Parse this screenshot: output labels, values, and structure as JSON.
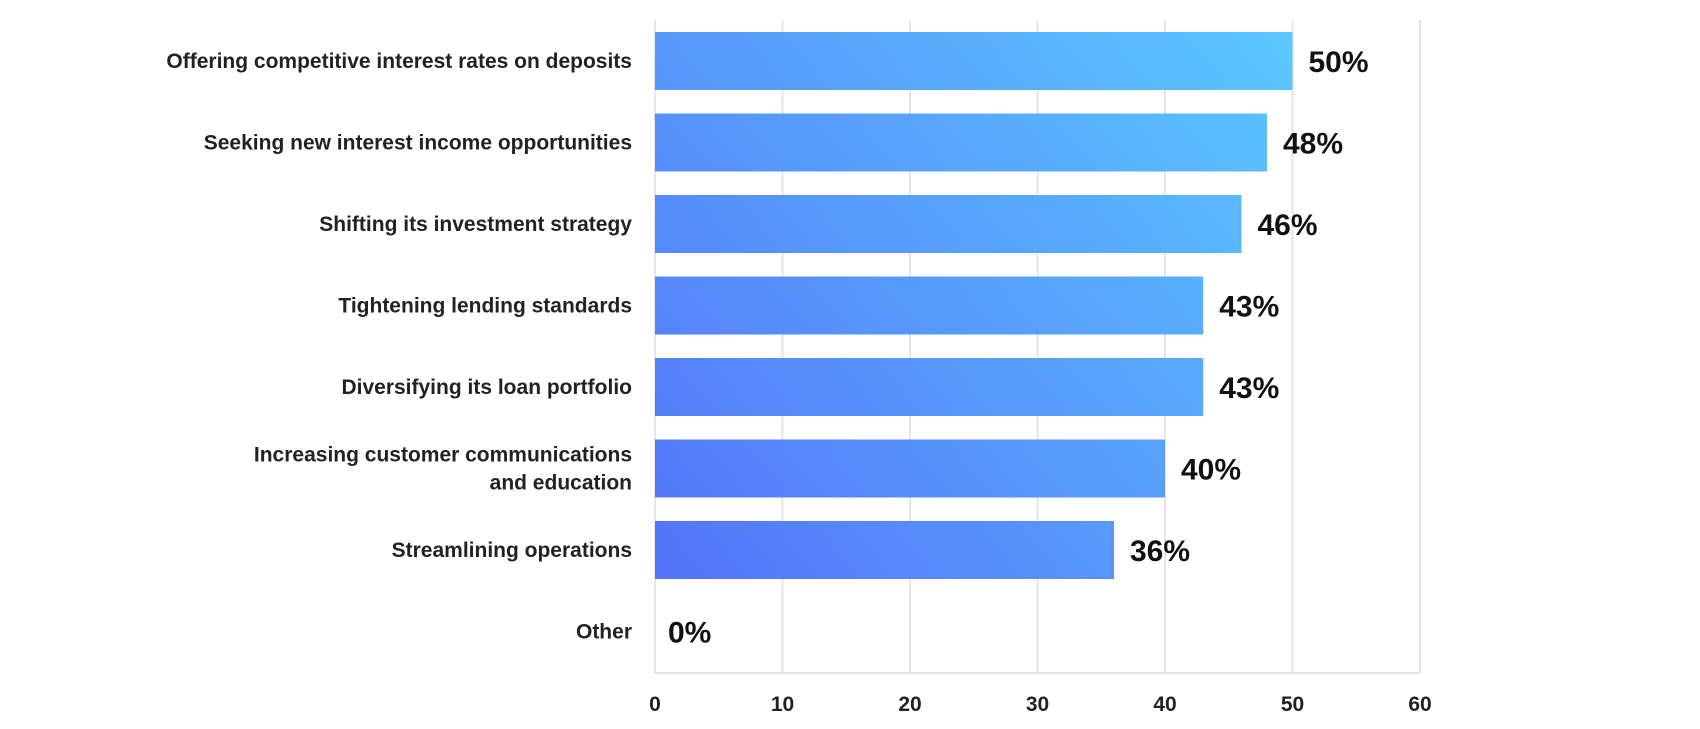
{
  "chart_data": {
    "type": "bar",
    "orientation": "horizontal",
    "categories": [
      [
        "Offering competitive interest rates on deposits"
      ],
      [
        "Seeking new interest income opportunities"
      ],
      [
        "Shifting its investment strategy"
      ],
      [
        "Tightening lending standards"
      ],
      [
        "Diversifying its loan portfolio"
      ],
      [
        "Increasing customer communications",
        "and education"
      ],
      [
        "Streamlining operations"
      ],
      [
        "Other"
      ]
    ],
    "values": [
      50,
      48,
      46,
      43,
      43,
      40,
      36,
      0
    ],
    "value_labels": [
      "50%",
      "48%",
      "46%",
      "43%",
      "43%",
      "40%",
      "36%",
      "0%"
    ],
    "xlim": [
      0,
      60
    ],
    "xticks": [
      0,
      10,
      20,
      30,
      40,
      50,
      60
    ],
    "grid": "vertical",
    "legend": "none",
    "colors": {
      "gradient_start": "#5473F8",
      "gradient_end": "#5BC8FF",
      "grid": "#E6E6E6"
    }
  }
}
